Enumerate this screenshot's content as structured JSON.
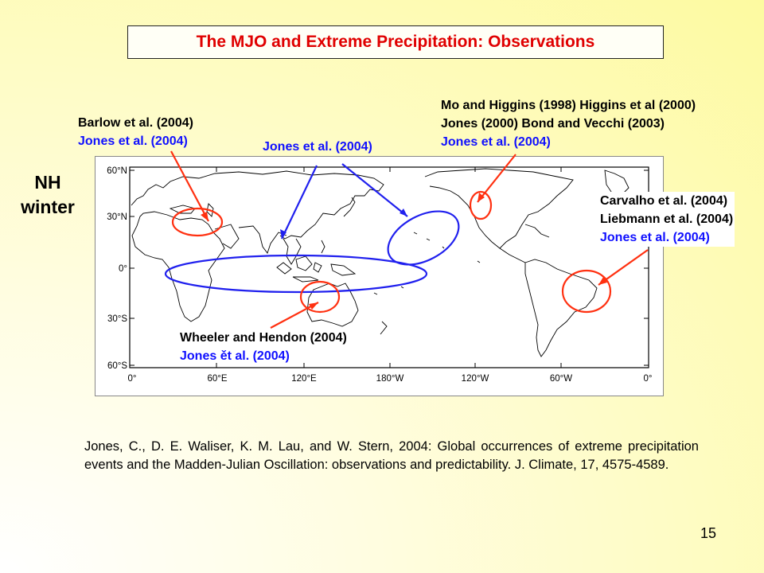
{
  "title": "The MJO and Extreme Precipitation: Observations",
  "season_label": [
    "NH",
    "winter"
  ],
  "map": {
    "lat_ticks": [
      "60°N",
      "30°N",
      "0°",
      "30°S",
      "60°S"
    ],
    "lon_ticks": [
      "0°",
      "60°E",
      "120°E",
      "180°W",
      "120°W",
      "60°W",
      "0°"
    ]
  },
  "annotations": {
    "barlow": {
      "black": [
        "Barlow et al. (2004)"
      ],
      "blue": "Jones et al. (2004)"
    },
    "jones_top": {
      "blue": "Jones et al. (2004)"
    },
    "mo_higgins": {
      "black": [
        "Mo and Higgins (1998) Higgins et al (2000)",
        "Jones (2000) Bond and Vecchi (2003)"
      ],
      "blue": "Jones et al. (2004)"
    },
    "carvalho": {
      "black": [
        "Carvalho et al. (2004)",
        "Liebmann et al. (2004)"
      ],
      "blue": "Jones et al. (2004)"
    },
    "wheeler": {
      "black": [
        "Wheeler and Hendon (2004)"
      ],
      "blue": "Jones ět al. (2004)"
    }
  },
  "citation": "Jones, C., D. E. Waliser, K. M. Lau, and W. Stern, 2004: Global occurrences of extreme precipitation events and the Madden-Julian Oscillation: observations and predictability. J. Climate, 17, 4575-4589.",
  "page_number": "15",
  "colors": {
    "title": "#e00000",
    "blue_text": "#1010ff",
    "red_marks": "#ff3010",
    "blue_marks": "#2020ee"
  }
}
